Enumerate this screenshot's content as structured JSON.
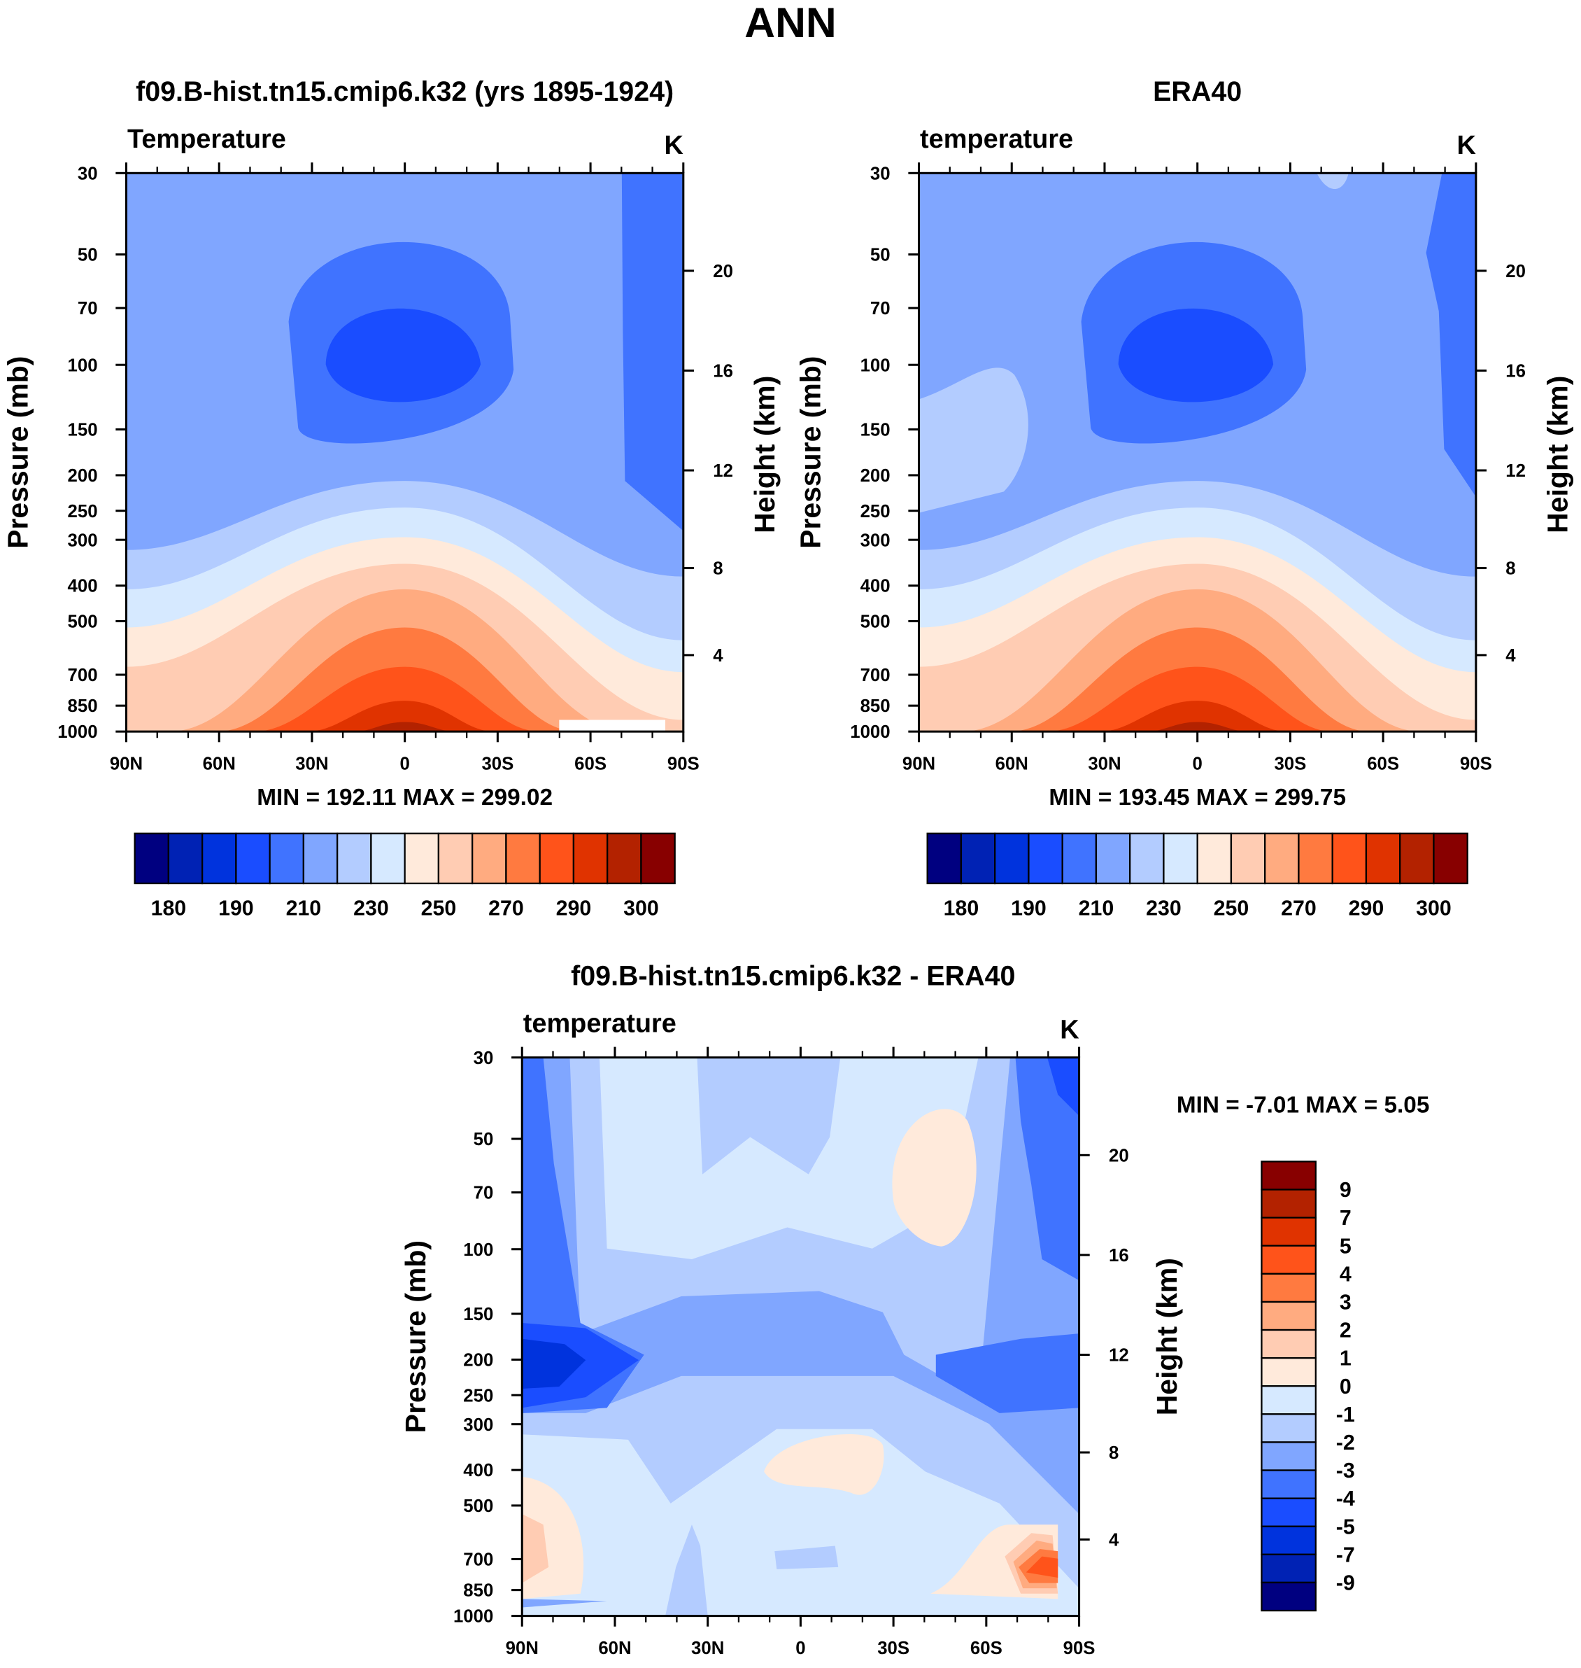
{
  "main_title": "ANN",
  "palette": [
    "#000080",
    "#0022b4",
    "#0033dd",
    "#1a4dff",
    "#4073ff",
    "#80a6ff",
    "#b3ccff",
    "#d6e9ff",
    "#ffeadb",
    "#ffccb3",
    "#ffab80",
    "#ff7a40",
    "#ff531a",
    "#e03300",
    "#b32200",
    "#880000"
  ],
  "chart_data": [
    {
      "type": "heatmap",
      "title": "f09.B-hist.tn15.cmip6.k32 (yrs 1895-1924)",
      "left_label": "Temperature",
      "units": "K",
      "ylabel": "Pressure (mb)",
      "ylabel_right": "Height (km)",
      "x_ticks": [
        "90N",
        "60N",
        "30N",
        "0",
        "30S",
        "60S",
        "90S"
      ],
      "y_ticks": [
        30,
        50,
        70,
        100,
        150,
        200,
        250,
        300,
        400,
        500,
        700,
        850,
        1000
      ],
      "y_ticks_right": [
        4,
        8,
        12,
        16,
        20
      ],
      "ylim": [
        1000,
        30
      ],
      "stats": "MIN = 192.11   MAX = 299.02",
      "colorbar_labels": [
        "180",
        "190",
        "210",
        "230",
        "250",
        "270",
        "290",
        "300"
      ]
    },
    {
      "type": "heatmap",
      "title": "ERA40",
      "left_label": "temperature",
      "units": "K",
      "ylabel": "Pressure (mb)",
      "ylabel_right": "Height (km)",
      "x_ticks": [
        "90N",
        "60N",
        "30N",
        "0",
        "30S",
        "60S",
        "90S"
      ],
      "y_ticks": [
        30,
        50,
        70,
        100,
        150,
        200,
        250,
        300,
        400,
        500,
        700,
        850,
        1000
      ],
      "y_ticks_right": [
        4,
        8,
        12,
        16,
        20
      ],
      "ylim": [
        1000,
        30
      ],
      "stats": "MIN = 193.45   MAX = 299.75",
      "colorbar_labels": [
        "180",
        "190",
        "210",
        "230",
        "250",
        "270",
        "290",
        "300"
      ]
    },
    {
      "type": "heatmap",
      "title": "f09.B-hist.tn15.cmip6.k32 - ERA40",
      "left_label": "temperature",
      "units": "K",
      "ylabel": "Pressure (mb)",
      "ylabel_right": "Height (km)",
      "x_ticks": [
        "90N",
        "60N",
        "30N",
        "0",
        "30S",
        "60S",
        "90S"
      ],
      "y_ticks": [
        30,
        50,
        70,
        100,
        150,
        200,
        250,
        300,
        400,
        500,
        700,
        850,
        1000
      ],
      "y_ticks_right": [
        4,
        8,
        12,
        16,
        20
      ],
      "ylim": [
        1000,
        30
      ],
      "stats": "MIN =  -7.01   MAX =   5.05",
      "colorbar_labels": [
        "9",
        "7",
        "5",
        "4",
        "3",
        "2",
        "1",
        "0",
        "-1",
        "-2",
        "-3",
        "-4",
        "-5",
        "-7",
        "-9"
      ]
    }
  ]
}
